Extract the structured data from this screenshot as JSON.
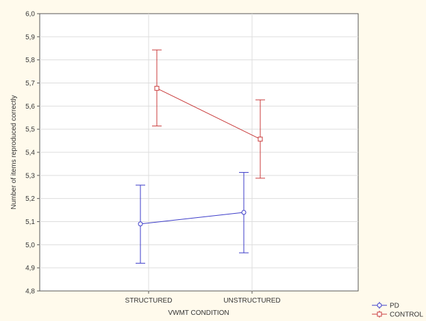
{
  "chart_data": {
    "type": "line",
    "title": "",
    "xlabel": "VWMT CONDITION",
    "ylabel": "Number of items reproduced correctly",
    "categories": [
      "STRUCTURED",
      "UNSTRUCTURED"
    ],
    "ylim": [
      4.8,
      6.0
    ],
    "yticks": [
      "4,8",
      "4,9",
      "5,0",
      "5,1",
      "5,2",
      "5,3",
      "5,4",
      "5,5",
      "5,6",
      "5,7",
      "5,8",
      "5,9",
      "6,0"
    ],
    "grid": true,
    "legend_position": "bottom-right",
    "series": [
      {
        "name": "PD",
        "color": "#3a3ac8",
        "marker": "circle",
        "values": [
          5.09,
          5.14
        ],
        "error_low": [
          4.92,
          4.965
        ],
        "error_high": [
          5.258,
          5.313
        ]
      },
      {
        "name": "CONTROL",
        "color": "#c83a3a",
        "marker": "square",
        "values": [
          5.677,
          5.457
        ],
        "error_low": [
          5.514,
          5.288
        ],
        "error_high": [
          5.843,
          5.627
        ]
      }
    ]
  }
}
